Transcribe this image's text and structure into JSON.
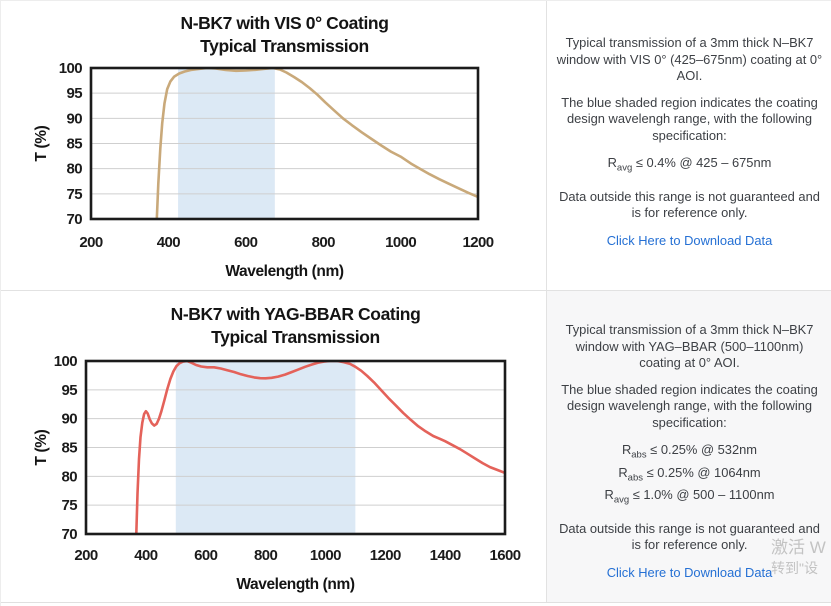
{
  "chart_data": [
    {
      "type": "line",
      "title": "N-BK7 with VIS 0° Coating",
      "subtitle": "Typical Transmission",
      "xlabel": "Wavelength (nm)",
      "ylabel": "T (%)",
      "xlim": [
        200,
        1200
      ],
      "ylim": [
        70,
        100
      ],
      "xticks": [
        200,
        400,
        600,
        800,
        1000,
        1200
      ],
      "yticks": [
        70,
        75,
        80,
        85,
        90,
        95,
        100
      ],
      "grid": "horizontal",
      "legend": "none",
      "shaded_region": {
        "x0": 425,
        "x1": 675,
        "color": "#dce9f5",
        "meaning": "coating design wavelength range"
      },
      "line_color": "#c9a97a",
      "x": [
        366,
        370,
        374,
        379,
        384,
        390,
        397,
        405,
        415,
        428,
        442,
        458,
        478,
        500,
        522,
        548,
        575,
        600,
        625,
        648,
        670,
        688,
        705,
        725,
        745,
        765,
        785,
        805,
        828,
        851,
        875,
        900,
        925,
        950,
        975,
        1000,
        1027,
        1050,
        1075,
        1100,
        1125,
        1150,
        1175,
        1200
      ],
      "y": [
        63,
        70,
        77,
        84,
        89,
        93,
        95.8,
        97.3,
        98.3,
        98.9,
        99.3,
        99.6,
        99.8,
        100,
        99.9,
        99.6,
        99.45,
        99.5,
        99.65,
        99.85,
        100,
        99.7,
        99.1,
        98.2,
        97.2,
        96,
        94.7,
        93.2,
        91.6,
        90,
        88.6,
        87.2,
        85.9,
        84.6,
        83.4,
        82.4,
        81,
        80,
        78.9,
        77.9,
        77,
        76.1,
        75.2,
        74.4
      ]
    },
    {
      "type": "line",
      "title": "N-BK7 with YAG-BBAR Coating",
      "subtitle": "Typical Transmission",
      "xlabel": "Wavelength (nm)",
      "ylabel": "T (%)",
      "xlim": [
        200,
        1600
      ],
      "ylim": [
        70,
        100
      ],
      "xticks": [
        200,
        400,
        600,
        800,
        1000,
        1200,
        1400,
        1600
      ],
      "yticks": [
        70,
        75,
        80,
        85,
        90,
        95,
        100
      ],
      "grid": "horizontal",
      "legend": "none",
      "shaded_region": {
        "x0": 500,
        "x1": 1100,
        "color": "#dce9f5",
        "meaning": "coating design wavelength range"
      },
      "line_color": "#e4625a",
      "x": [
        364,
        368,
        372,
        377,
        382,
        388,
        394,
        400,
        406,
        413,
        420,
        428,
        436,
        444,
        452,
        462,
        472,
        482,
        492,
        502,
        512,
        524,
        538,
        552,
        568,
        585,
        605,
        628,
        650,
        672,
        695,
        718,
        740,
        762,
        782,
        800,
        820,
        842,
        865,
        888,
        910,
        932,
        955,
        975,
        995,
        1015,
        1040,
        1062,
        1082,
        1100,
        1120,
        1140,
        1162,
        1185,
        1210,
        1235,
        1260,
        1285,
        1310,
        1335,
        1360,
        1383,
        1400,
        1425,
        1450,
        1475,
        1500,
        1525,
        1550,
        1575,
        1600
      ],
      "y": [
        63,
        70,
        77,
        83,
        86.8,
        89.3,
        90.8,
        91.3,
        90.9,
        89.9,
        89.2,
        88.8,
        89.1,
        90,
        91.3,
        93.2,
        95.2,
        96.9,
        98.2,
        99.1,
        99.6,
        99.9,
        100,
        99.7,
        99.3,
        99.05,
        98.9,
        98.9,
        98.7,
        98.4,
        98.1,
        97.7,
        97.4,
        97.15,
        97.02,
        97,
        97.08,
        97.3,
        97.65,
        98.1,
        98.55,
        99,
        99.4,
        99.7,
        99.9,
        100,
        100,
        99.8,
        99.5,
        99,
        98.3,
        97.4,
        96.3,
        95,
        93.6,
        92.3,
        91,
        89.8,
        88.7,
        87.8,
        87,
        86.5,
        86.1,
        85.4,
        84.7,
        83.9,
        83.1,
        82.3,
        81.6,
        81.1,
        80.6
      ]
    }
  ],
  "panels": [
    {
      "p1": "Typical transmission of a 3mm thick N–BK7 window with VIS 0° (425–675nm) coating at 0° AOI.",
      "p2": "The blue shaded region indicates the coating design wavelengh range, with the following specification:",
      "specs": [
        {
          "base": "R",
          "sub": "avg",
          "rest": " ≤ 0.4% @ 425 – 675nm"
        }
      ],
      "p3": "Data outside this range is not guaranteed and is for reference only.",
      "link": "Click Here to Download Data"
    },
    {
      "p1": "Typical transmission of a 3mm thick N–BK7 window with YAG–BBAR (500–1100nm) coating at 0° AOI.",
      "p2": "The blue shaded region indicates the coating design wavelengh range, with the following specification:",
      "specs": [
        {
          "base": "R",
          "sub": "abs",
          "rest": " ≤ 0.25% @ 532nm"
        },
        {
          "base": "R",
          "sub": "abs",
          "rest": " ≤ 0.25% @ 1064nm"
        },
        {
          "base": "R",
          "sub": "avg",
          "rest": " ≤ 1.0% @ 500 – 1100nm"
        }
      ],
      "p3": "Data outside this range is not guaranteed and is for reference only.",
      "link": "Click Here to Download Data"
    }
  ],
  "watermark": {
    "line1": "激活 W",
    "line2": "转到\"设"
  },
  "colors": {
    "link_blue": "#2570d4",
    "shade_blue": "#dce9f5",
    "vis_curve_tan": "#c9a97a",
    "yag_curve_red": "#e4625a",
    "grid_gray": "#cfcfcf",
    "axis_black": "#1b1b1b"
  }
}
